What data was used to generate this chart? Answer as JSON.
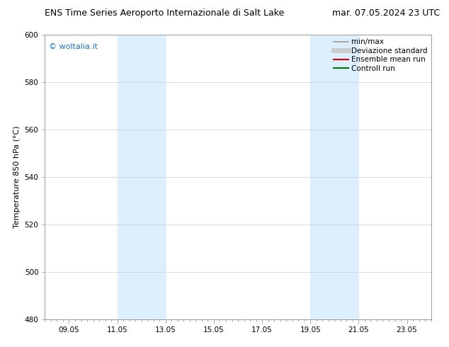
{
  "title_left": "ENS Time Series Aeroporto Internazionale di Salt Lake",
  "title_right": "mar. 07.05.2024 23 UTC",
  "ylabel": "Temperature 850 hPa (°C)",
  "ylim": [
    480,
    600
  ],
  "yticks": [
    480,
    500,
    520,
    540,
    560,
    580,
    600
  ],
  "x_min": 0,
  "x_max": 16,
  "xtick_labels": [
    "09.05",
    "11.05",
    "13.05",
    "15.05",
    "17.05",
    "19.05",
    "21.05",
    "23.05"
  ],
  "xtick_positions": [
    1,
    3,
    5,
    7,
    9,
    11,
    13,
    15
  ],
  "watermark_text": "© woltalia.it",
  "watermark_color": "#1a6ecc",
  "background_color": "#ffffff",
  "plot_bg_color": "#ffffff",
  "shaded_bands": [
    {
      "x_start": 3,
      "x_end": 5,
      "color": "#ddeeff"
    },
    {
      "x_start": 11,
      "x_end": 13,
      "color": "#ddeeff"
    }
  ],
  "legend_entries": [
    {
      "label": "min/max",
      "color": "#aaaaaa",
      "linewidth": 1.5
    },
    {
      "label": "Deviazione standard",
      "color": "#cccccc",
      "linewidth": 5
    },
    {
      "label": "Ensemble mean run",
      "color": "#dd0000",
      "linewidth": 1.5
    },
    {
      "label": "Controll run",
      "color": "#007700",
      "linewidth": 1.5
    }
  ],
  "title_fontsize": 9,
  "axis_label_fontsize": 8,
  "tick_fontsize": 7.5,
  "legend_fontsize": 7.5,
  "watermark_fontsize": 8,
  "border_color": "#999999",
  "grid_color": "#cccccc",
  "grid_linewidth": 0.5
}
